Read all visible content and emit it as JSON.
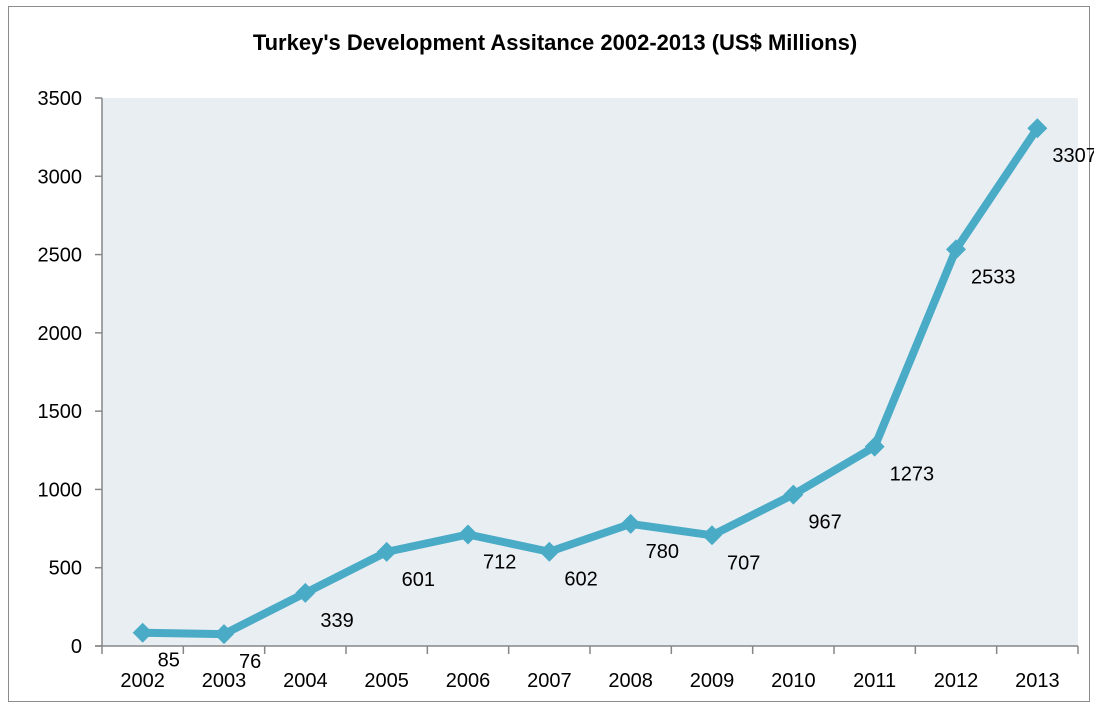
{
  "chart_data": {
    "type": "line",
    "title": "Turkey's Development Assitance 2002-2013 (US$ Millions)",
    "xlabel": "",
    "ylabel": "",
    "categories": [
      "2002",
      "2003",
      "2004",
      "2005",
      "2006",
      "2007",
      "2008",
      "2009",
      "2010",
      "2011",
      "2012",
      "2013"
    ],
    "series": [
      {
        "values": [
          85,
          76,
          339,
          601,
          712,
          602,
          780,
          707,
          967,
          1273,
          2533,
          3307
        ]
      }
    ],
    "ylim": [
      0,
      3500
    ],
    "yticks": [
      0,
      500,
      1000,
      1500,
      2000,
      2500,
      3000,
      3500
    ],
    "grid": false,
    "legend": "none",
    "colors": {
      "line": "#4aabc6",
      "plot_background": "#e9eef3",
      "axis": "#868686"
    }
  }
}
